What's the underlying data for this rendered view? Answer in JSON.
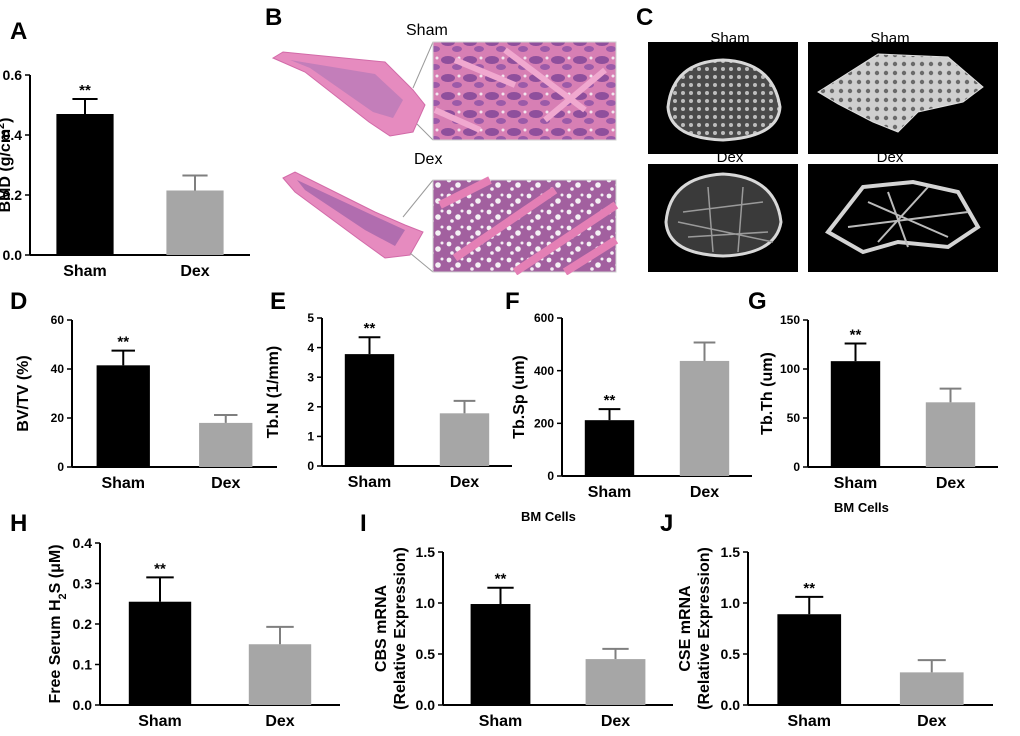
{
  "panels": {
    "a": "A",
    "b": "B",
    "c": "C",
    "d": "D",
    "e": "E",
    "f": "F",
    "g": "G",
    "h": "H",
    "i": "I",
    "j": "J"
  },
  "histology": {
    "sham_label": "Sham",
    "dex_label": "Dex"
  },
  "microct": {
    "sham_label_1": "Sham",
    "sham_label_2": "Sham",
    "dex_label_1": "Dex",
    "dex_label_2": "Dex"
  },
  "floating_labels": {
    "bm_cells_1": "BM Cells",
    "bm_cells_2": "BM Cells"
  },
  "colors": {
    "sham": "#000000",
    "dex": "#a6a6a6"
  },
  "chart_data": [
    {
      "id": "A",
      "type": "bar",
      "categories": [
        "Sham",
        "Dex"
      ],
      "values": [
        0.47,
        0.215
      ],
      "errors": [
        0.05,
        0.05
      ],
      "ylabel": "BMD (g/cm",
      "ylabel_sup": "2",
      "ylabel_after": ")",
      "ylim": [
        0,
        0.6
      ],
      "ticks": [
        "0.0",
        "0.2",
        "0.4",
        "0.6"
      ],
      "tick_values": [
        0,
        0.2,
        0.4,
        0.6
      ],
      "annotations": [
        "**",
        ""
      ]
    },
    {
      "id": "D",
      "type": "bar",
      "categories": [
        "Sham",
        "Dex"
      ],
      "values": [
        41.5,
        18
      ],
      "errors": [
        6,
        3.2
      ],
      "ylabel": "BV/TV  (%)",
      "ylim": [
        0,
        60
      ],
      "ticks": [
        "0",
        "20",
        "40",
        "60"
      ],
      "tick_values": [
        0,
        20,
        40,
        60
      ],
      "annotations": [
        "**",
        ""
      ]
    },
    {
      "id": "E",
      "type": "bar",
      "categories": [
        "Sham",
        "Dex"
      ],
      "values": [
        3.78,
        1.78
      ],
      "errors": [
        0.57,
        0.42
      ],
      "ylabel": "Tb.N (1/mm)",
      "ylim": [
        0,
        5
      ],
      "ticks": [
        "0",
        "1",
        "2",
        "3",
        "4",
        "5"
      ],
      "tick_values": [
        0,
        1,
        2,
        3,
        4,
        5
      ],
      "annotations": [
        "**",
        ""
      ]
    },
    {
      "id": "F",
      "type": "bar",
      "categories": [
        "Sham",
        "Dex"
      ],
      "values": [
        212,
        437
      ],
      "errors": [
        42,
        70
      ],
      "ylabel": "Tb.Sp (um)",
      "ylim": [
        0,
        600
      ],
      "ticks": [
        "0",
        "200",
        "400",
        "600"
      ],
      "tick_values": [
        0,
        200,
        400,
        600
      ],
      "annotations": [
        "**",
        ""
      ]
    },
    {
      "id": "G",
      "type": "bar",
      "categories": [
        "Sham",
        "Dex"
      ],
      "values": [
        108,
        66
      ],
      "errors": [
        18,
        14
      ],
      "ylabel": "Tb.Th (um)",
      "ylim": [
        0,
        150
      ],
      "ticks": [
        "0",
        "50",
        "100",
        "150"
      ],
      "tick_values": [
        0,
        50,
        100,
        150
      ],
      "annotations": [
        "**",
        ""
      ]
    },
    {
      "id": "H",
      "type": "bar",
      "categories": [
        "Sham",
        "Dex"
      ],
      "values": [
        0.255,
        0.15
      ],
      "errors": [
        0.06,
        0.043
      ],
      "ylabel": "Free Serum H",
      "ylabel_sub": "2",
      "ylabel_after": "S (μM)",
      "ylim": [
        0,
        0.4
      ],
      "ticks": [
        "0.0",
        "0.1",
        "0.2",
        "0.3",
        "0.4"
      ],
      "tick_values": [
        0,
        0.1,
        0.2,
        0.3,
        0.4
      ],
      "annotations": [
        "**",
        ""
      ]
    },
    {
      "id": "I",
      "type": "bar",
      "categories": [
        "Sham",
        "Dex"
      ],
      "values": [
        0.99,
        0.45
      ],
      "errors": [
        0.16,
        0.1
      ],
      "ylabel": "CBS mRNA",
      "ylabel_line2": "(Relative Expression)",
      "ylim": [
        0,
        1.5
      ],
      "ticks": [
        "0.0",
        "0.5",
        "1.0",
        "1.5"
      ],
      "tick_values": [
        0,
        0.5,
        1.0,
        1.5
      ],
      "annotations": [
        "**",
        ""
      ]
    },
    {
      "id": "J",
      "type": "bar",
      "categories": [
        "Sham",
        "Dex"
      ],
      "values": [
        0.89,
        0.32
      ],
      "errors": [
        0.17,
        0.12
      ],
      "ylabel": "CSE mRNA",
      "ylabel_line2": "(Relative Expression)",
      "ylim": [
        0,
        1.5
      ],
      "ticks": [
        "0.0",
        "0.5",
        "1.0",
        "1.5"
      ],
      "tick_values": [
        0,
        0.5,
        1.0,
        1.5
      ],
      "annotations": [
        "**",
        ""
      ]
    }
  ]
}
